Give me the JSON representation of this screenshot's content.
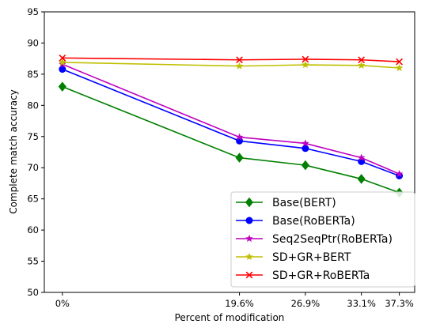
{
  "chart_data": {
    "type": "line",
    "xlabel": "Percent of modification",
    "ylabel": "Complete match accuracy",
    "x": [
      0,
      19.6,
      26.9,
      33.1,
      37.3
    ],
    "x_tick_labels": [
      "0%",
      "19.6%",
      "26.9%",
      "33.1%",
      "37.3%"
    ],
    "xlim": [
      -2,
      39
    ],
    "ylim": [
      50,
      95
    ],
    "y_ticks": [
      50,
      55,
      60,
      65,
      70,
      75,
      80,
      85,
      90,
      95
    ],
    "grid": false,
    "legend_position": "lower-right",
    "series": [
      {
        "name": "Base(BERT)",
        "color": "#008000",
        "marker": "diamond",
        "values": [
          83.0,
          71.6,
          70.4,
          68.2,
          66.0
        ]
      },
      {
        "name": "Base(RoBERTa)",
        "color": "#0000ff",
        "marker": "circle",
        "values": [
          85.8,
          74.3,
          73.1,
          71.0,
          68.7
        ]
      },
      {
        "name": "Seq2SeqPtr(RoBERTa)",
        "color": "#bf00bf",
        "marker": "star",
        "values": [
          86.6,
          74.9,
          73.9,
          71.6,
          69.0
        ]
      },
      {
        "name": "SD+GR+BERT",
        "color": "#bfbf00",
        "marker": "star",
        "values": [
          86.9,
          86.3,
          86.5,
          86.4,
          86.0
        ]
      },
      {
        "name": "SD+GR+RoBERTa",
        "color": "#ff0000",
        "marker": "x",
        "values": [
          87.6,
          87.3,
          87.4,
          87.3,
          87.0
        ]
      }
    ]
  }
}
